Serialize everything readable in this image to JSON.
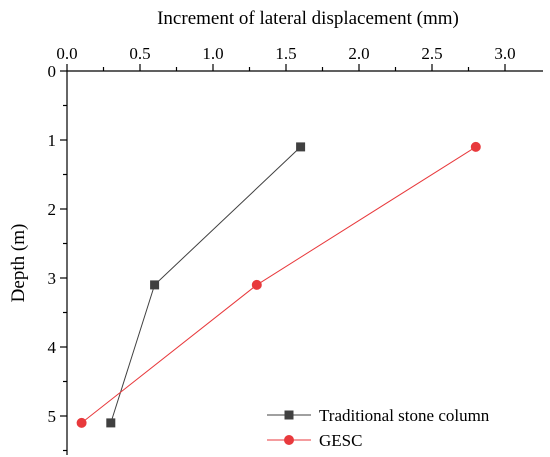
{
  "chart_data": {
    "type": "line",
    "xlabel": "Increment of lateral displacement (mm)",
    "ylabel": "Depth (m)",
    "xlim": [
      0,
      3.2
    ],
    "ylim": [
      0,
      5.5
    ],
    "x_axis_position": "top",
    "y_axis_inverted": true,
    "x_ticks": [
      "0.0",
      "0.5",
      "1.0",
      "1.5",
      "2.0",
      "2.5",
      "3.0"
    ],
    "y_ticks": [
      "0",
      "1",
      "2",
      "3",
      "4",
      "5"
    ],
    "grid": false,
    "legend_position": "bottom-right",
    "series": [
      {
        "name": "Traditional stone column",
        "color": "#404040",
        "marker": "square",
        "points": [
          {
            "x": 1.6,
            "y": 1.1
          },
          {
            "x": 0.6,
            "y": 3.1
          },
          {
            "x": 0.3,
            "y": 5.1
          }
        ]
      },
      {
        "name": "GESC",
        "color": "#e8393c",
        "marker": "circle",
        "points": [
          {
            "x": 2.8,
            "y": 1.1
          },
          {
            "x": 1.3,
            "y": 3.1
          },
          {
            "x": 0.1,
            "y": 5.1
          }
        ]
      }
    ]
  }
}
